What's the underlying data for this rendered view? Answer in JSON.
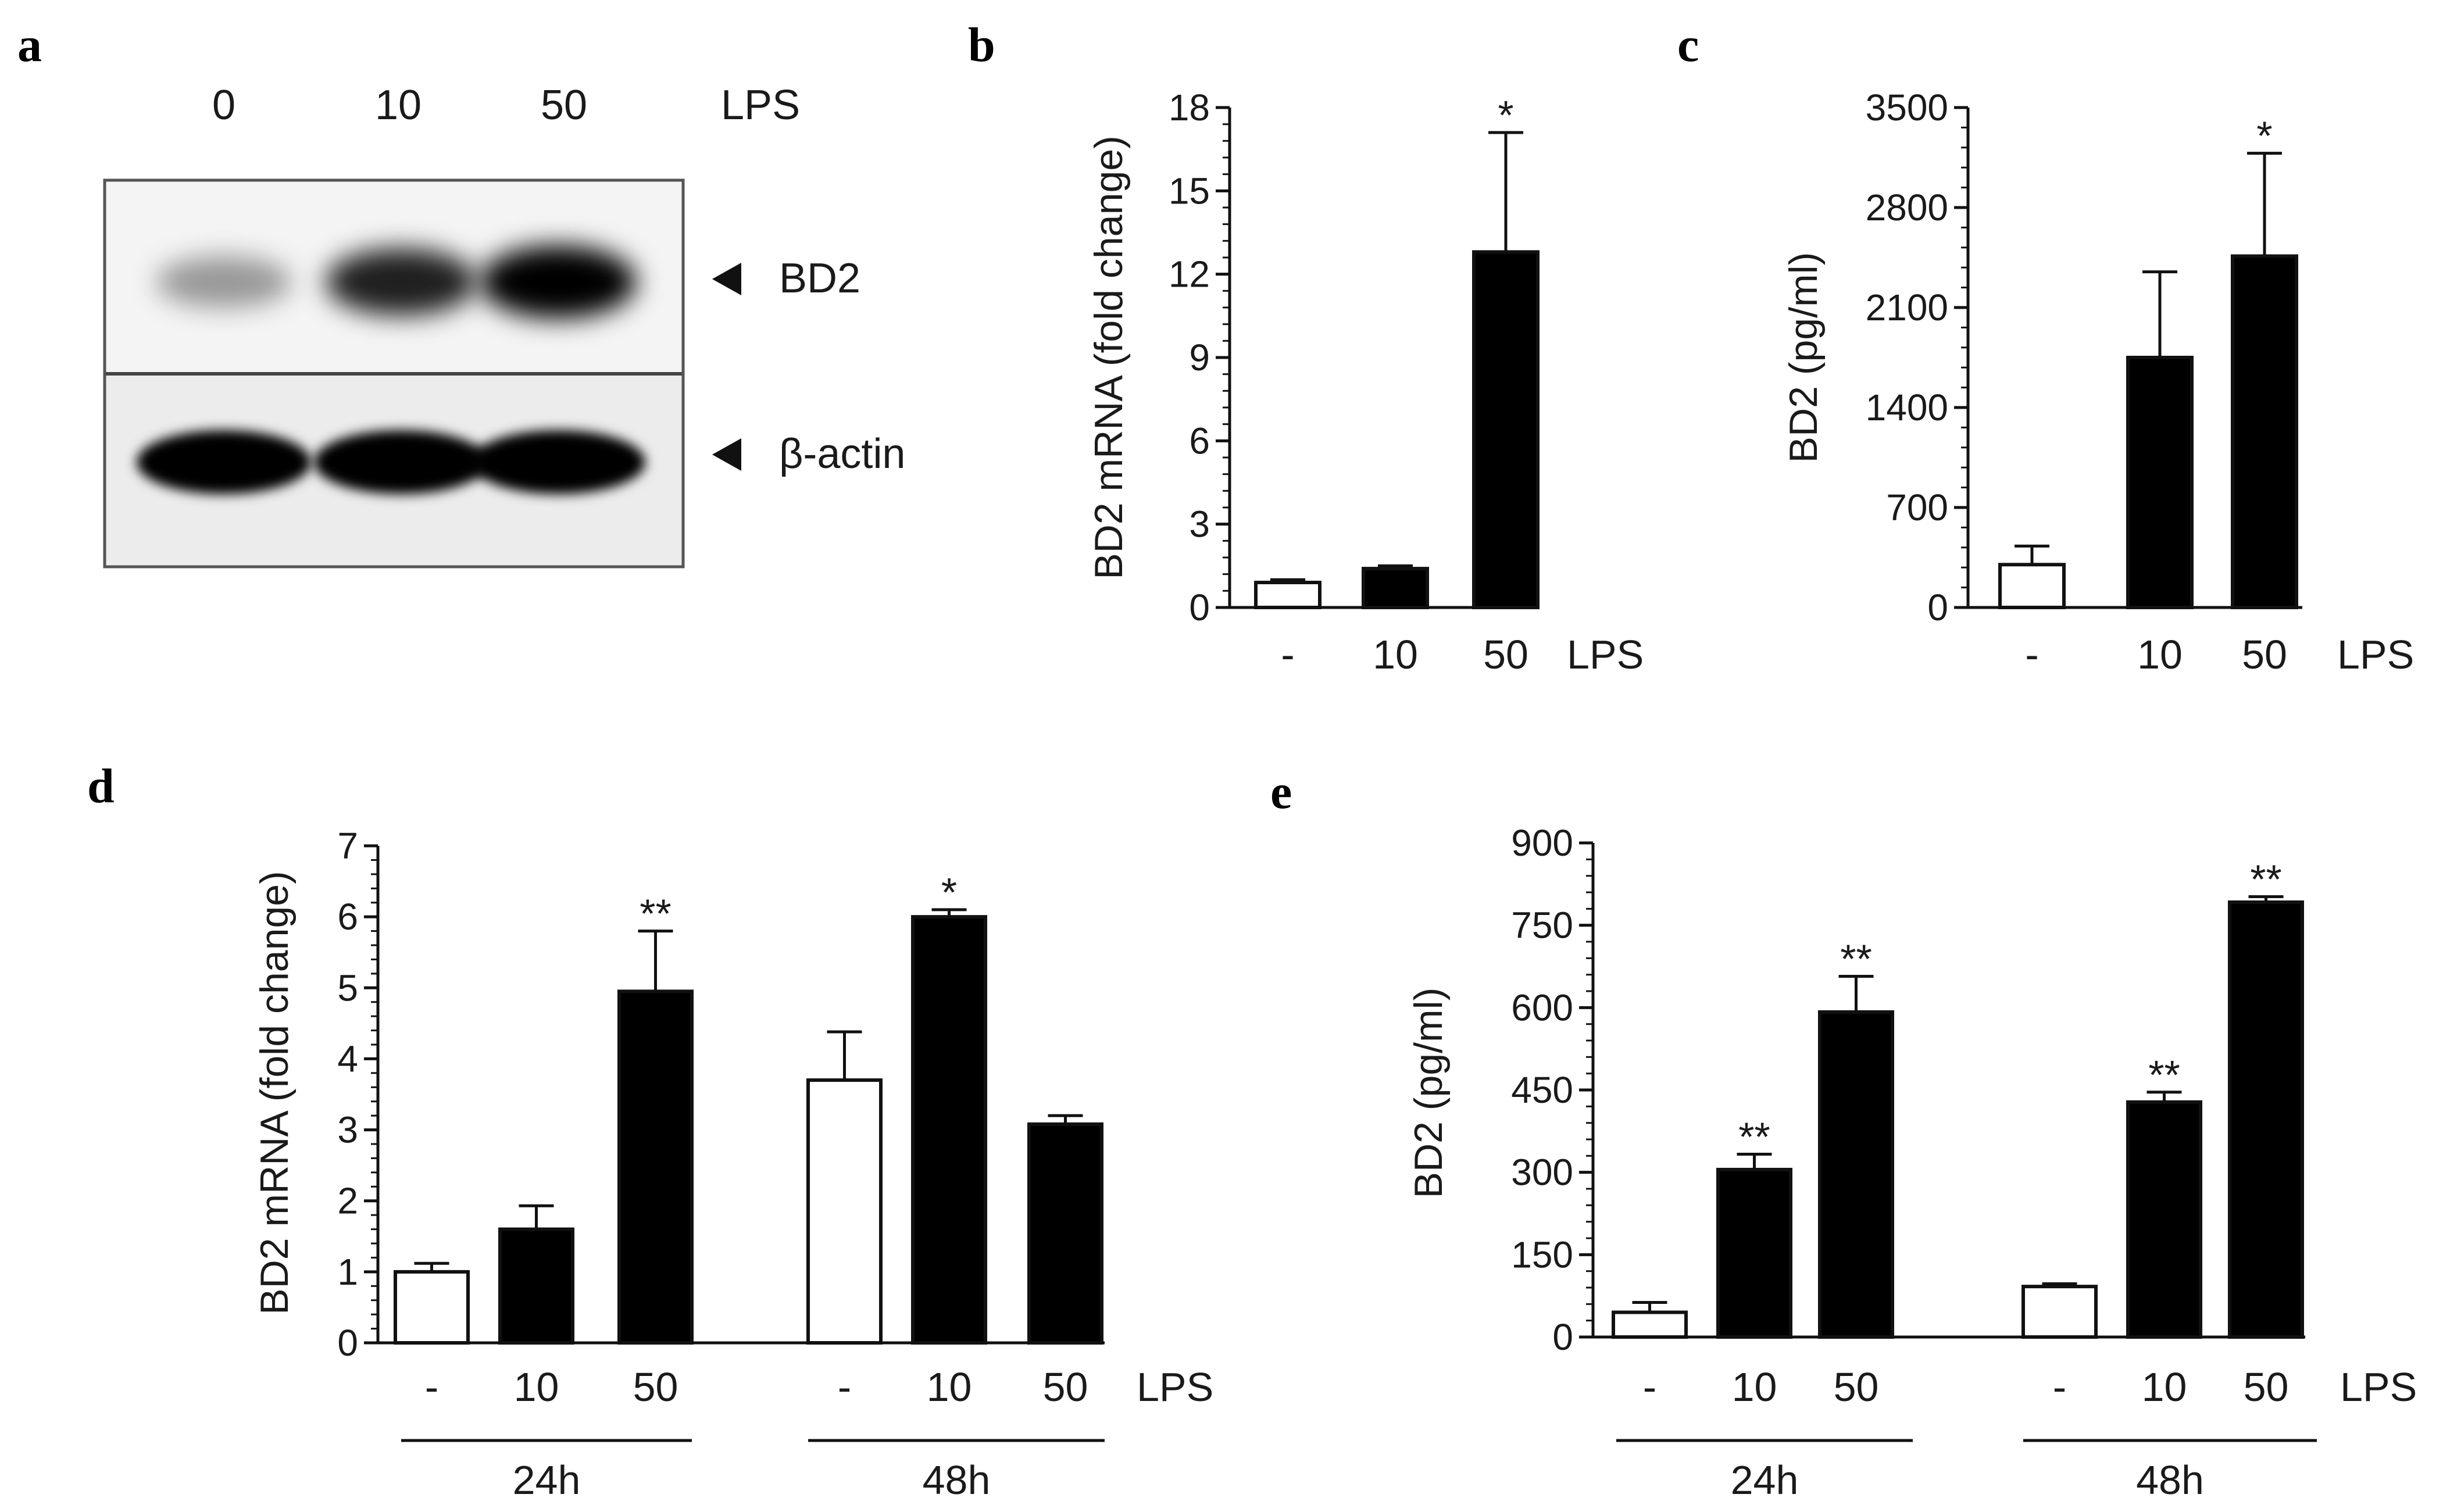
{
  "panel_letters": [
    "a",
    "b",
    "c",
    "d",
    "e"
  ],
  "blot": {
    "lanes": [
      "0",
      "10",
      "50"
    ],
    "treatment": "LPS",
    "bands": [
      "BD2",
      "β-actin"
    ],
    "band_intensity": {
      "BD2": [
        0.25,
        0.8,
        1.0
      ],
      "β-actin": [
        1.0,
        0.95,
        1.0
      ]
    }
  },
  "chart_data": [
    {
      "panel": "b",
      "type": "bar",
      "ylabel": "BD2 mRNA (fold change)",
      "xlabel": "LPS",
      "categories": [
        "-",
        "10",
        "50"
      ],
      "values": [
        0.9,
        1.4,
        12.8
      ],
      "errors": [
        0.1,
        0.1,
        4.3
      ],
      "fills": [
        "white",
        "black",
        "black"
      ],
      "significance": [
        "",
        "",
        "*"
      ],
      "ylim": [
        0,
        18
      ],
      "yticks": [
        0,
        3,
        6,
        9,
        12,
        15,
        18
      ]
    },
    {
      "panel": "c",
      "type": "bar",
      "ylabel": "BD2 (pg/ml)",
      "xlabel": "LPS",
      "categories": [
        "-",
        "10",
        "50"
      ],
      "values": [
        300,
        1750,
        2460
      ],
      "errors": [
        130,
        600,
        720
      ],
      "fills": [
        "white",
        "black",
        "black"
      ],
      "significance": [
        "",
        "",
        "*"
      ],
      "ylim": [
        0,
        3500
      ],
      "yticks": [
        0,
        700,
        1400,
        2100,
        2800,
        3500
      ]
    },
    {
      "panel": "d",
      "type": "bar",
      "ylabel": "BD2 mRNA (fold change)",
      "xlabel": "LPS",
      "groups": [
        "24h",
        "48h"
      ],
      "categories": [
        "-",
        "10",
        "50",
        "-",
        "10",
        "50"
      ],
      "values": [
        1.0,
        1.6,
        4.95,
        3.7,
        6.0,
        3.08
      ],
      "errors": [
        0.12,
        0.33,
        0.85,
        0.68,
        0.1,
        0.12
      ],
      "fills": [
        "white",
        "black",
        "black",
        "white",
        "black",
        "black"
      ],
      "significance": [
        "",
        "",
        "**",
        "",
        "*",
        ""
      ],
      "ylim": [
        0,
        7
      ],
      "yticks": [
        0,
        1,
        2,
        3,
        4,
        5,
        6,
        7
      ]
    },
    {
      "panel": "e",
      "type": "bar",
      "ylabel": "BD2 (pg/ml)",
      "xlabel": "LPS",
      "groups": [
        "24h",
        "48h"
      ],
      "categories": [
        "-",
        "10",
        "50",
        "-",
        "10",
        "50"
      ],
      "values": [
        45,
        305,
        592,
        92,
        428,
        792
      ],
      "errors": [
        18,
        28,
        65,
        5,
        18,
        10
      ],
      "fills": [
        "white",
        "black",
        "black",
        "white",
        "black",
        "black"
      ],
      "significance": [
        "",
        "**",
        "**",
        "",
        "**",
        "**"
      ],
      "ylim": [
        0,
        900
      ],
      "yticks": [
        0,
        150,
        300,
        450,
        600,
        750,
        900
      ]
    }
  ]
}
